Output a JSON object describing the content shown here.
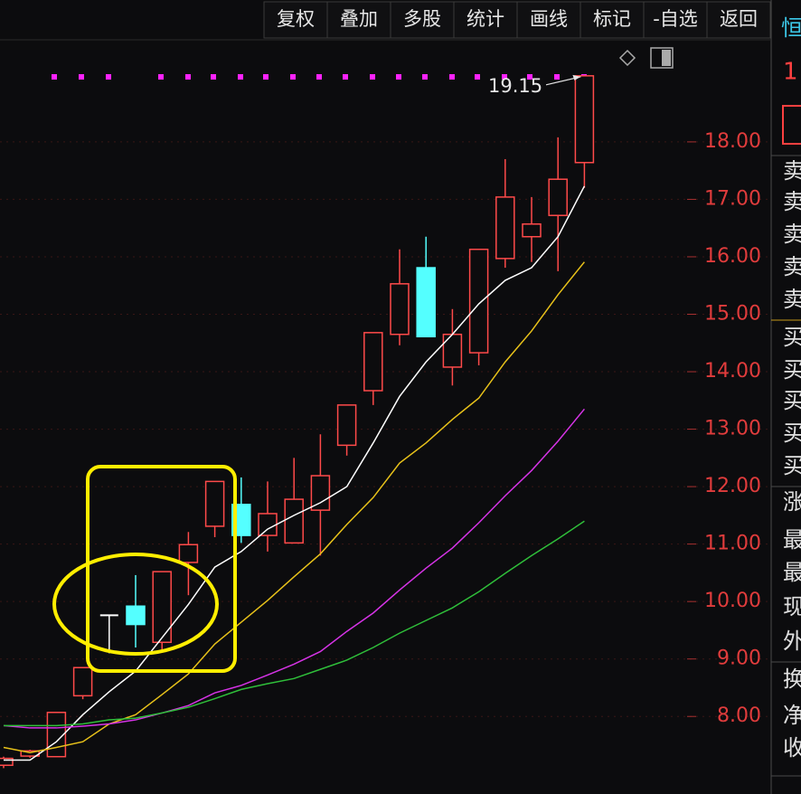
{
  "toolbar": [
    "复权",
    "叠加",
    "多股",
    "统计",
    "画线",
    "标记",
    "-自选",
    "返回"
  ],
  "chart_data": {
    "type": "candlestick",
    "ylim": [
      6.65,
      19.84
    ],
    "yticks": [
      {
        "value": 8,
        "label": "8.00"
      },
      {
        "value": 9,
        "label": "9.00"
      },
      {
        "value": 10,
        "label": "10.00"
      },
      {
        "value": 11,
        "label": "11.00"
      },
      {
        "value": 12,
        "label": "12.00"
      },
      {
        "value": 13,
        "label": "13.00"
      },
      {
        "value": 14,
        "label": "14.00"
      },
      {
        "value": 15,
        "label": "15.00"
      },
      {
        "value": 16,
        "label": "16.00"
      },
      {
        "value": 17,
        "label": "17.00"
      },
      {
        "value": 18,
        "label": "18.00"
      }
    ],
    "grid": true,
    "up_color": "#ff4a4a",
    "down_color": "#54ffff",
    "flat_color": "#ffffff",
    "open": [
      7.15,
      7.31,
      7.3,
      8.36,
      9.76,
      9.92,
      9.29,
      10.68,
      11.31,
      11.69,
      11.15,
      11.02,
      11.59,
      12.72,
      13.67,
      14.65,
      15.81,
      14.08,
      14.33,
      15.97,
      16.35,
      16.72,
      17.64
    ],
    "high": [
      7.3,
      7.42,
      8.07,
      8.85,
      9.76,
      10.46,
      10.52,
      11.21,
      12.09,
      12.16,
      12.09,
      12.5,
      12.91,
      13.42,
      14.68,
      16.13,
      16.35,
      15.09,
      16.13,
      17.7,
      17.04,
      18.08,
      19.15
    ],
    "low": [
      7.1,
      7.28,
      7.3,
      8.3,
      9.1,
      9.2,
      9.13,
      10.11,
      11.12,
      11.02,
      10.87,
      11.02,
      10.8,
      12.54,
      13.42,
      14.46,
      14.61,
      13.76,
      14.11,
      15.81,
      15.91,
      15.75,
      17.2
    ],
    "close": [
      7.27,
      7.4,
      8.07,
      8.85,
      9.76,
      9.6,
      10.52,
      10.99,
      12.09,
      11.15,
      11.53,
      11.78,
      12.19,
      13.42,
      14.68,
      15.53,
      14.61,
      14.65,
      16.13,
      17.04,
      16.57,
      17.35,
      19.15
    ],
    "lines": [
      {
        "color": "#ffffff",
        "values": [
          7.24,
          7.24,
          7.56,
          8.03,
          8.43,
          8.79,
          9.37,
          9.95,
          10.6,
          10.87,
          11.26,
          11.5,
          11.72,
          12.0,
          12.76,
          13.57,
          14.17,
          14.65,
          15.18,
          15.59,
          15.81,
          16.35,
          17.23
        ]
      },
      {
        "color": "#e8c21a",
        "values": [
          7.46,
          7.37,
          7.46,
          7.56,
          7.87,
          8.03,
          8.38,
          8.74,
          9.26,
          9.64,
          10.02,
          10.43,
          10.83,
          11.34,
          11.81,
          12.41,
          12.76,
          13.17,
          13.54,
          14.17,
          14.71,
          15.34,
          15.91
        ]
      },
      {
        "color": "#d633e6",
        "values": [
          7.84,
          7.8,
          7.8,
          7.83,
          7.87,
          7.94,
          8.06,
          8.19,
          8.41,
          8.54,
          8.72,
          8.91,
          9.13,
          9.48,
          9.8,
          10.2,
          10.58,
          10.93,
          11.37,
          11.84,
          12.28,
          12.79,
          13.35
        ]
      },
      {
        "color": "#2fbf3a",
        "values": [
          7.84,
          7.84,
          7.84,
          7.87,
          7.94,
          7.97,
          8.06,
          8.16,
          8.31,
          8.47,
          8.57,
          8.66,
          8.82,
          8.98,
          9.2,
          9.45,
          9.67,
          9.89,
          10.17,
          10.49,
          10.8,
          11.09,
          11.4
        ]
      }
    ]
  },
  "side_panel": {
    "title": "恒",
    "value": "1",
    "labels": [
      "卖",
      "卖",
      "卖",
      "卖",
      "卖",
      "买",
      "买",
      "买",
      "买",
      "买",
      "涨",
      "最",
      "最",
      "现",
      "外",
      "换",
      "净",
      "收"
    ]
  }
}
